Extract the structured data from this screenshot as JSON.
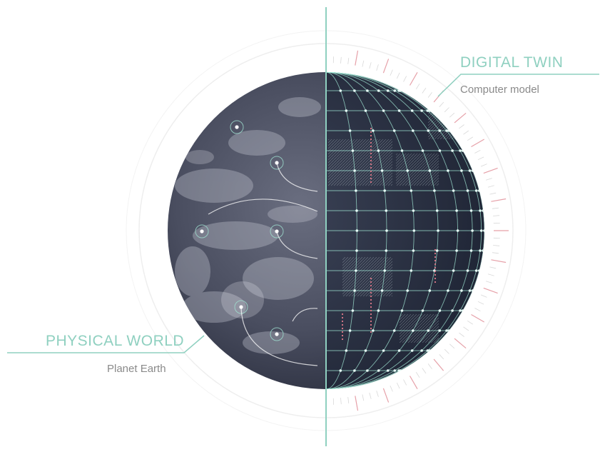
{
  "digital_twin": {
    "title": "DIGITAL TWIN",
    "subtitle": "Computer model"
  },
  "physical_world": {
    "title": "PHYSICAL WORLD",
    "subtitle": "Planet Earth"
  },
  "colors": {
    "accent": "#8fd0c0",
    "grid": "#a6f0dc",
    "ticks": "#e6a0a8",
    "earth": "#4a4e60",
    "text_muted": "#8a8a8a"
  }
}
